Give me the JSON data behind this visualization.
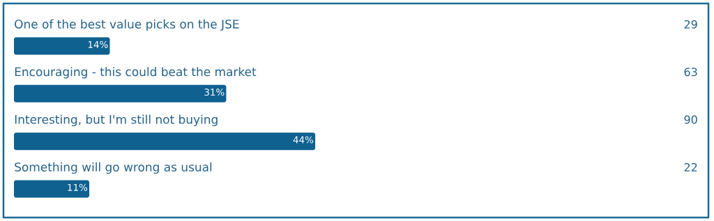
{
  "chart_data": {
    "type": "bar",
    "orientation": "horizontal",
    "categories": [
      "One of the best value picks on the JSE",
      "Encouraging - this could beat the market",
      "Interesting, but I'm still not buying",
      "Something will go wrong as usual"
    ],
    "values": [
      14,
      31,
      44,
      11
    ],
    "value_labels": [
      "14%",
      "31%",
      "44%",
      "11%"
    ],
    "color": "#0f6190",
    "annotations": [
      "29",
      "63",
      "90",
      "22"
    ]
  }
}
